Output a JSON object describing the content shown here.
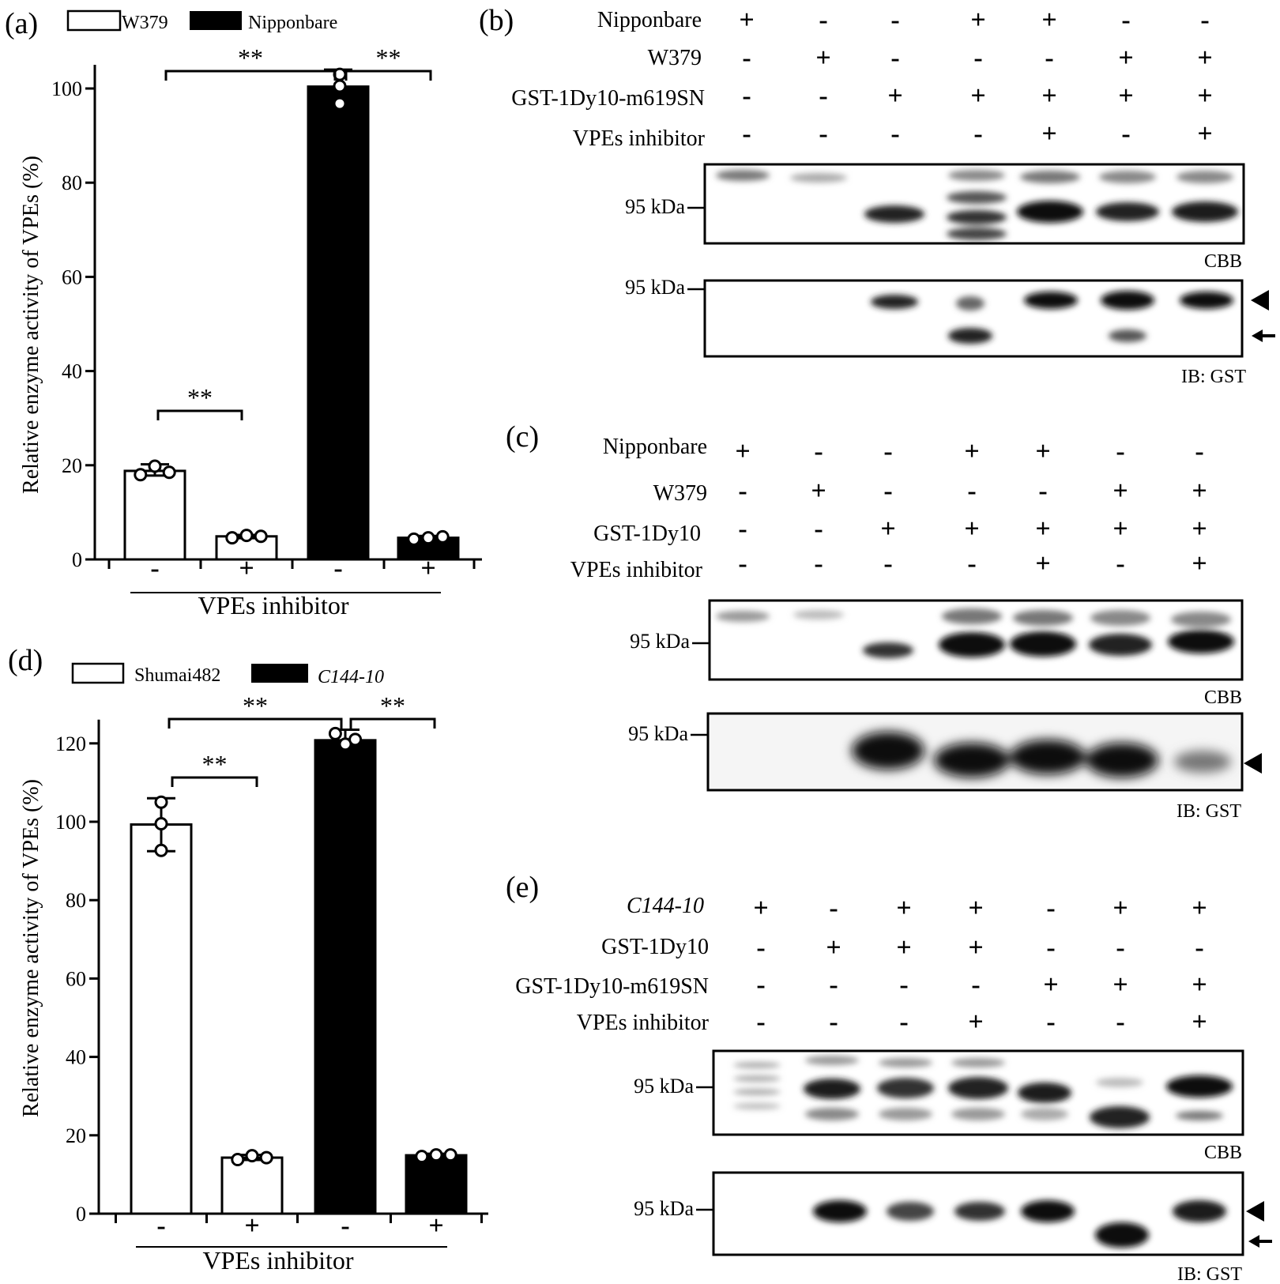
{
  "panels": {
    "a": "(a)",
    "b": "(b)",
    "c": "(c)",
    "d": "(d)",
    "e": "(e)"
  },
  "colors": {
    "bar_outline": "#000000",
    "filled_bar": "#000000",
    "open_bar": "#ffffff",
    "point_fill": "#ffffff"
  },
  "chart_data": [
    {
      "panel": "(a)",
      "type": "bar",
      "ylabel": "Relative enzyme activity of VPEs (%)",
      "xlabel": "VPEs inhibitor",
      "ylim": [
        0,
        100
      ],
      "yticks": [
        "0",
        "20",
        "40",
        "60",
        "80",
        "100"
      ],
      "legend": [
        {
          "name": "W379",
          "fill": "open"
        },
        {
          "name": "Nipponbare",
          "fill": "solid"
        }
      ],
      "bars": [
        {
          "group": "W379",
          "inhibitor": "-",
          "value": 18.8,
          "err_low": 17.8,
          "err_high": 20.2,
          "points": [
            18,
            19.8,
            18.5
          ]
        },
        {
          "group": "W379",
          "inhibitor": "+",
          "value": 4.9,
          "err_low": 4.5,
          "err_high": 5.2,
          "points": [
            4.6,
            5.1,
            4.9
          ]
        },
        {
          "group": "Nipponbare",
          "inhibitor": "-",
          "value": 100.4,
          "err_low": 97,
          "err_high": 104,
          "points": [
            103,
            100.5,
            96.8
          ]
        },
        {
          "group": "Nipponbare",
          "inhibitor": "+",
          "value": 4.6,
          "err_low": 4.2,
          "err_high": 5.0,
          "points": [
            4.3,
            4.6,
            4.8
          ]
        }
      ],
      "xticks": [
        "-",
        "+",
        "-",
        "+"
      ],
      "significance": [
        {
          "from": 0,
          "to": 1,
          "label": "**"
        },
        {
          "from": 0,
          "to": 2,
          "label": "**"
        },
        {
          "from": 2,
          "to": 3,
          "label": "**"
        }
      ]
    },
    {
      "panel": "(d)",
      "type": "bar",
      "ylabel": "Relative enzyme activity of VPEs (%)",
      "xlabel": "VPEs inhibitor",
      "ylim": [
        0,
        125
      ],
      "yticks": [
        "0",
        "20",
        "40",
        "60",
        "80",
        "100",
        "120"
      ],
      "legend": [
        {
          "name": "Shumai482",
          "fill": "open"
        },
        {
          "name": "C144-10",
          "fill": "solid"
        }
      ],
      "bars": [
        {
          "group": "Shumai482",
          "inhibitor": "-",
          "value": 99.3,
          "err_low": 92.5,
          "err_high": 106,
          "points": [
            105,
            99.5,
            92.7
          ]
        },
        {
          "group": "Shumai482",
          "inhibitor": "+",
          "value": 14.3,
          "err_low": 13.7,
          "err_high": 15.0,
          "points": [
            13.8,
            14.8,
            14.3
          ]
        },
        {
          "group": "C144-10",
          "inhibitor": "-",
          "value": 120.8,
          "err_low": 119.5,
          "err_high": 123.5,
          "points": [
            122.5,
            119.8,
            121.0
          ]
        },
        {
          "group": "C144-10",
          "inhibitor": "+",
          "value": 14.9,
          "err_low": 14.5,
          "err_high": 15.3,
          "points": [
            14.6,
            15.0,
            15.0
          ]
        }
      ],
      "xticks": [
        "-",
        "+",
        "-",
        "+"
      ],
      "significance": [
        {
          "from": 0,
          "to": 1,
          "label": "**"
        },
        {
          "from": 0,
          "to": 2,
          "label": "**"
        },
        {
          "from": 2,
          "to": 3,
          "label": "**"
        }
      ]
    }
  ],
  "blots": [
    {
      "panel": "(b)",
      "rows": [
        {
          "label": "Nipponbare",
          "italic": false,
          "signs": [
            "+",
            "-",
            "-",
            "+",
            "+",
            "-",
            "-"
          ]
        },
        {
          "label": "W379",
          "italic": false,
          "signs": [
            "-",
            "+",
            "-",
            "-",
            "-",
            "+",
            "+"
          ]
        },
        {
          "label": "GST-1Dy10-m619SN",
          "italic": false,
          "signs": [
            "-",
            "-",
            "+",
            "+",
            "+",
            "+",
            "+"
          ]
        },
        {
          "label": "VPEs inhibitor",
          "italic": false,
          "signs": [
            "-",
            "-",
            "-",
            "-",
            "+",
            "-",
            "+"
          ]
        }
      ],
      "gels": [
        {
          "marker": "95 kDa",
          "caption": "CBB",
          "arrowhead": false,
          "arrow": false
        },
        {
          "marker": "95 kDa",
          "caption": "IB: GST",
          "arrowhead": true,
          "arrow": true
        }
      ]
    },
    {
      "panel": "(c)",
      "rows": [
        {
          "label": "Nipponbare",
          "italic": false,
          "signs": [
            "+",
            "-",
            "-",
            "+",
            "+",
            "-",
            "-"
          ]
        },
        {
          "label": "W379",
          "italic": false,
          "signs": [
            "-",
            "+",
            "-",
            "-",
            "-",
            "+",
            "+"
          ]
        },
        {
          "label": "GST-1Dy10",
          "italic": false,
          "signs": [
            "-",
            "-",
            "+",
            "+",
            "+",
            "+",
            "+"
          ]
        },
        {
          "label": "VPEs inhibitor",
          "italic": false,
          "signs": [
            "-",
            "-",
            "-",
            "-",
            "+",
            "-",
            "+"
          ]
        }
      ],
      "gels": [
        {
          "marker": "95 kDa",
          "caption": "CBB",
          "arrowhead": false,
          "arrow": false
        },
        {
          "marker": "95 kDa",
          "caption": "IB: GST",
          "arrowhead": true,
          "arrow": false
        }
      ]
    },
    {
      "panel": "(e)",
      "rows": [
        {
          "label": "C144-10",
          "italic": true,
          "signs": [
            "+",
            "-",
            "+",
            "+",
            "-",
            "+",
            "+"
          ]
        },
        {
          "label": "GST-1Dy10",
          "italic": false,
          "signs": [
            "-",
            "+",
            "+",
            "+",
            "-",
            "-",
            "-"
          ]
        },
        {
          "label": "GST-1Dy10-m619SN",
          "italic": false,
          "signs": [
            "-",
            "-",
            "-",
            "-",
            "+",
            "+",
            "+"
          ]
        },
        {
          "label": "VPEs inhibitor",
          "italic": false,
          "signs": [
            "-",
            "-",
            "-",
            "+",
            "-",
            "-",
            "+"
          ]
        }
      ],
      "gels": [
        {
          "marker": "95 kDa",
          "caption": "CBB",
          "arrowhead": false,
          "arrow": false
        },
        {
          "marker": "95 kDa",
          "caption": "IB: GST",
          "arrowhead": true,
          "arrow": true
        }
      ]
    }
  ]
}
